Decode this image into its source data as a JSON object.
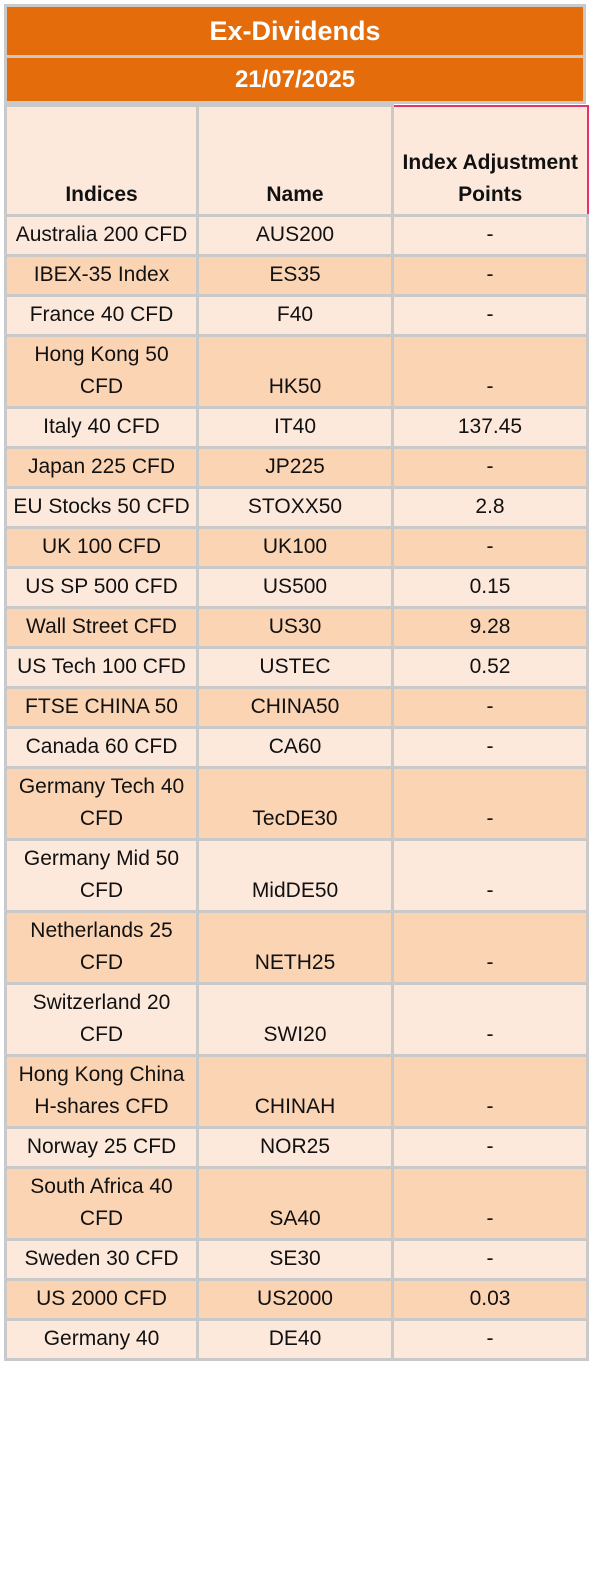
{
  "title": "Ex-Dividends",
  "date": "21/07/2025",
  "columns": [
    "Indices",
    "Name",
    "Index Adjustment Points"
  ],
  "rows": [
    {
      "index": "Australia 200 CFD",
      "name": "AUS200",
      "points": "-"
    },
    {
      "index": "IBEX-35 Index",
      "name": "ES35",
      "points": "-"
    },
    {
      "index": "France 40 CFD",
      "name": "F40",
      "points": "-"
    },
    {
      "index": "Hong Kong 50 CFD",
      "name": "HK50",
      "points": "-"
    },
    {
      "index": "Italy 40 CFD",
      "name": "IT40",
      "points": "137.45"
    },
    {
      "index": "Japan 225 CFD",
      "name": "JP225",
      "points": "-"
    },
    {
      "index": "EU Stocks 50 CFD",
      "name": "STOXX50",
      "points": "2.8"
    },
    {
      "index": "UK 100 CFD",
      "name": "UK100",
      "points": "-"
    },
    {
      "index": "US SP 500 CFD",
      "name": "US500",
      "points": "0.15"
    },
    {
      "index": "Wall Street CFD",
      "name": "US30",
      "points": "9.28"
    },
    {
      "index": "US Tech 100 CFD",
      "name": "USTEC",
      "points": "0.52"
    },
    {
      "index": "FTSE CHINA 50",
      "name": "CHINA50",
      "points": "-"
    },
    {
      "index": "Canada 60 CFD",
      "name": "CA60",
      "points": "-"
    },
    {
      "index": "Germany Tech 40 CFD",
      "name": "TecDE30",
      "points": "-"
    },
    {
      "index": "Germany Mid 50 CFD",
      "name": "MidDE50",
      "points": "-"
    },
    {
      "index": "Netherlands 25 CFD",
      "name": "NETH25",
      "points": "-"
    },
    {
      "index": "Switzerland 20 CFD",
      "name": "SWI20",
      "points": "-"
    },
    {
      "index": "Hong Kong China H-shares CFD",
      "name": "CHINAH",
      "points": "-"
    },
    {
      "index": "Norway 25 CFD",
      "name": "NOR25",
      "points": "-"
    },
    {
      "index": "South Africa 40 CFD",
      "name": "SA40",
      "points": "-"
    },
    {
      "index": "Sweden 30 CFD",
      "name": "SE30",
      "points": "-"
    },
    {
      "index": "US 2000 CFD",
      "name": "US2000",
      "points": "0.03"
    },
    {
      "index": "Germany 40",
      "name": "DE40",
      "points": "-"
    }
  ]
}
